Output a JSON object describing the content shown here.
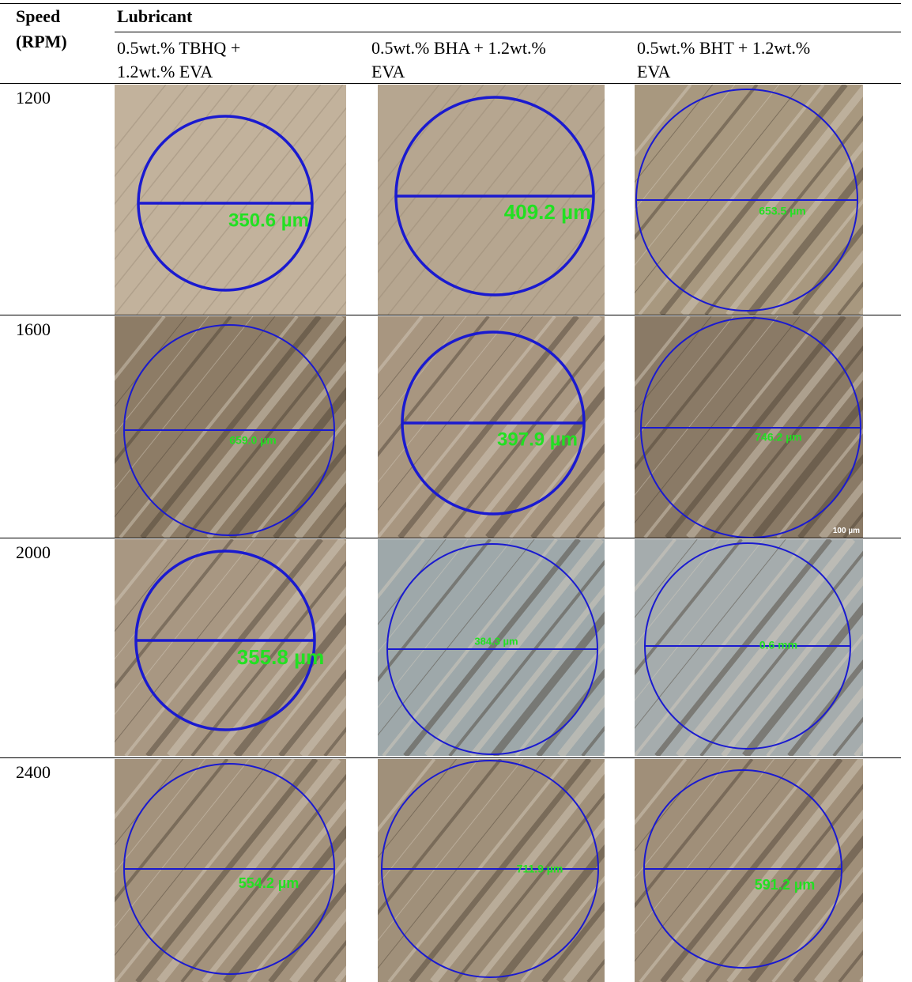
{
  "table": {
    "header": {
      "speed": "Speed",
      "unit": "(RPM)",
      "lubricant": "Lubricant",
      "columns": [
        [
          "0.5wt.% TBHQ +",
          "1.2wt.% EVA"
        ],
        [
          "0.5wt.% BHA + 1.2wt.%",
          "EVA"
        ],
        [
          "0.5wt.% BHT + 1.2wt.%",
          "EVA"
        ]
      ]
    },
    "rows": [
      {
        "speed": "1200",
        "cells": [
          "350.6 µm",
          "409.2 µm",
          "653.5 µm"
        ]
      },
      {
        "speed": "1600",
        "cells": [
          "659.0 µm",
          "397.9 µm",
          "746.2 µm"
        ],
        "scale": "100 µm"
      },
      {
        "speed": "2000",
        "cells": [
          "355.8 µm",
          "384.3 µm",
          "0.6 mm"
        ]
      },
      {
        "speed": "2400",
        "cells": [
          "554.2 µm",
          "711.9 µm",
          "591.2 µm"
        ]
      }
    ]
  }
}
